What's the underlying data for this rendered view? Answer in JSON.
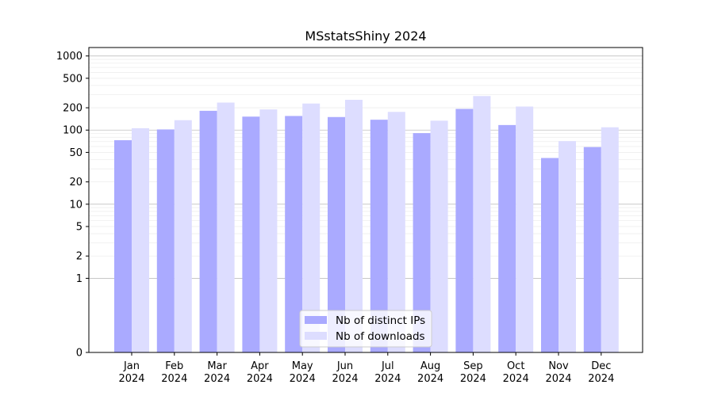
{
  "chart_data": {
    "type": "bar",
    "title": "MSstatsShiny 2024",
    "xlabel": "",
    "ylabel": "",
    "yscale": "symlog",
    "ylim": [
      0,
      1300
    ],
    "grid": true,
    "legend_position": "bottom-center",
    "categories": [
      {
        "month": "Jan",
        "year": "2024"
      },
      {
        "month": "Feb",
        "year": "2024"
      },
      {
        "month": "Mar",
        "year": "2024"
      },
      {
        "month": "Apr",
        "year": "2024"
      },
      {
        "month": "May",
        "year": "2024"
      },
      {
        "month": "Jun",
        "year": "2024"
      },
      {
        "month": "Jul",
        "year": "2024"
      },
      {
        "month": "Aug",
        "year": "2024"
      },
      {
        "month": "Sep",
        "year": "2024"
      },
      {
        "month": "Oct",
        "year": "2024"
      },
      {
        "month": "Nov",
        "year": "2024"
      },
      {
        "month": "Dec",
        "year": "2024"
      }
    ],
    "y_ticks": [
      "0",
      "1",
      "2",
      "5",
      "10",
      "20",
      "50",
      "100",
      "200",
      "500",
      "1000"
    ],
    "series": [
      {
        "name": "Nb of distinct IPs",
        "color": "#aaaaff",
        "values": [
          73,
          102,
          182,
          152,
          155,
          150,
          138,
          91,
          193,
          117,
          42,
          59
        ]
      },
      {
        "name": "Nb of downloads",
        "color": "#ddddff",
        "values": [
          106,
          136,
          235,
          190,
          228,
          256,
          176,
          134,
          288,
          208,
          71,
          109
        ]
      }
    ]
  }
}
